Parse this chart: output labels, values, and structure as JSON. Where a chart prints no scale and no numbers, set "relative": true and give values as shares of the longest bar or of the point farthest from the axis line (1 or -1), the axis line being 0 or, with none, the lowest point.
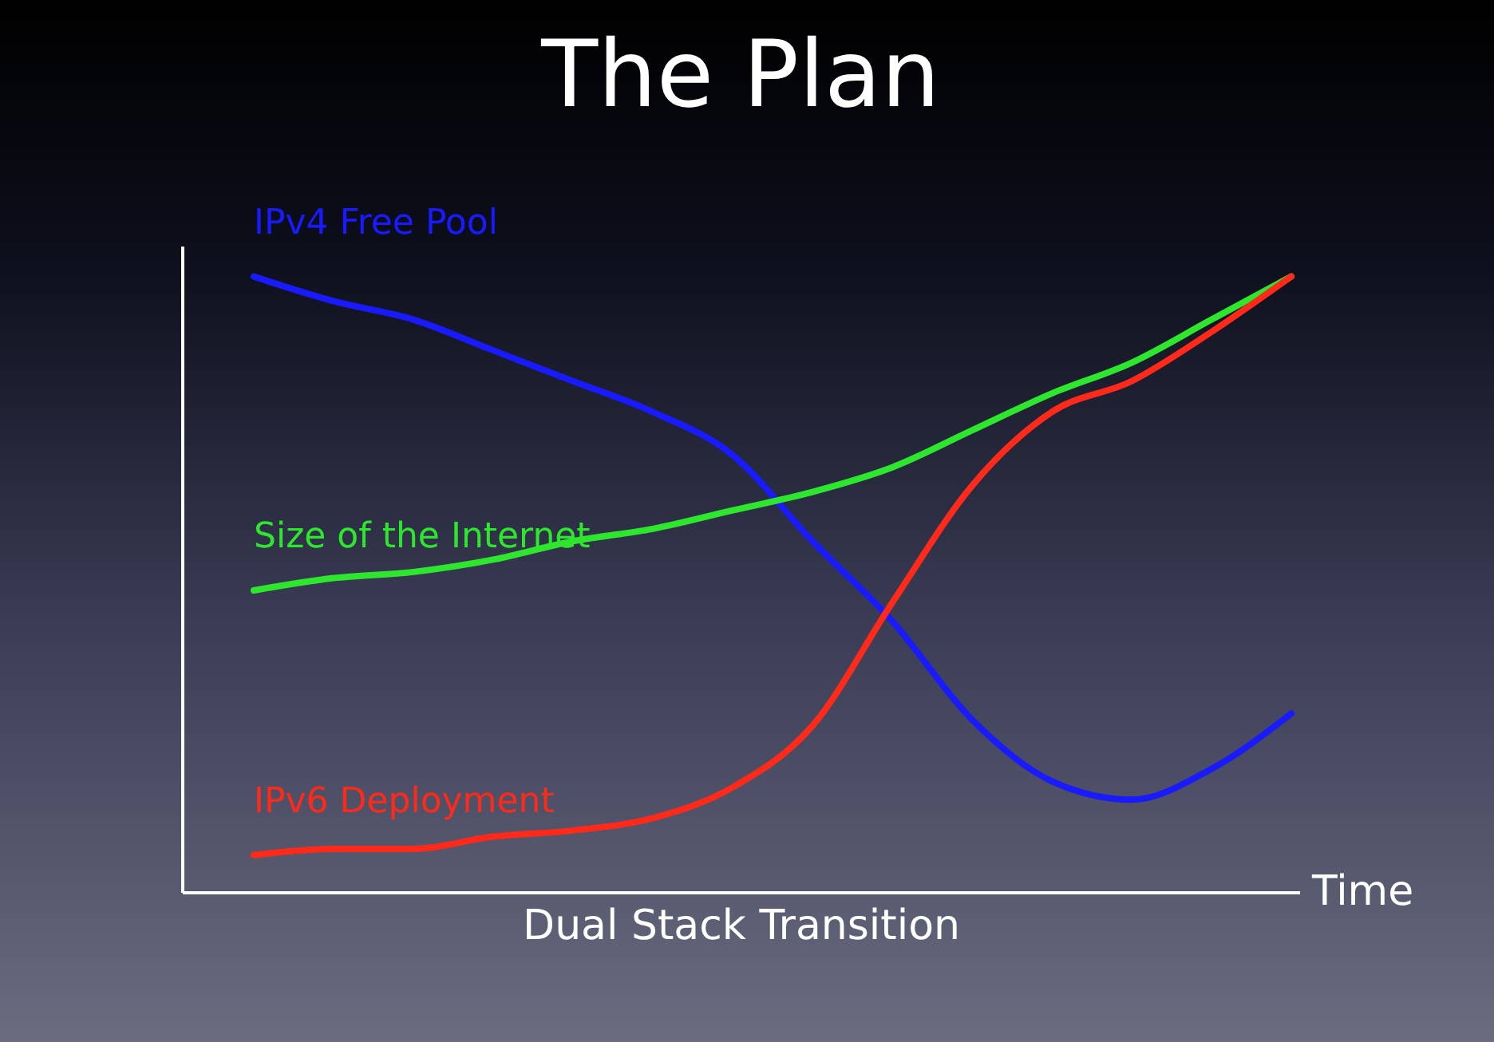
{
  "chart_data": {
    "type": "line",
    "title": "The Plan",
    "xlabel": "Dual Stack Transition",
    "relative": true,
    "categories": [
      null,
      null,
      null,
      null,
      null,
      null,
      null,
      null,
      null,
      null,
      null,
      null,
      null,
      null
    ],
    "series": [
      {
        "name": "IPv4 Free Pool",
        "color": "#1a1aff",
        "values": [
          1.0,
          0.96,
          0.93,
          0.88,
          0.83,
          0.78,
          0.71,
          0.57,
          0.44,
          0.28,
          0.18,
          0.15,
          0.2,
          0.29
        ]
      },
      {
        "name": "Size of the Internet",
        "color": "#2ee62e",
        "values": [
          0.49,
          0.51,
          0.52,
          0.54,
          0.57,
          0.59,
          0.62,
          0.65,
          0.69,
          0.75,
          0.81,
          0.86,
          0.93,
          1.0
        ]
      },
      {
        "name": "IPv6 Deployment",
        "color": "#ff2a1a",
        "values": [
          0.06,
          0.07,
          0.07,
          0.09,
          0.1,
          0.12,
          0.17,
          0.27,
          0.47,
          0.66,
          0.78,
          0.83,
          0.91,
          1.0
        ]
      }
    ],
    "annotations": [
      "Time"
    ]
  }
}
